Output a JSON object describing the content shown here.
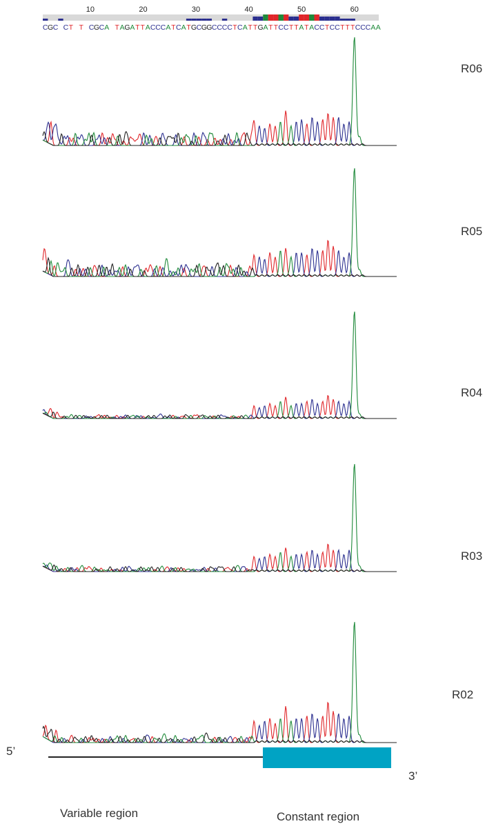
{
  "ruler": {
    "ticks": [
      "10",
      "20",
      "30",
      "40",
      "50",
      "60"
    ],
    "tick_positions": [
      10,
      20,
      30,
      40,
      50,
      60
    ]
  },
  "sequence": "CGC CT T CGCA TAGATTACCCATCATGCGGCCCCTCATTGATTCCTTATACCTCCTTTCCCAA",
  "quality": [
    1,
    0,
    0,
    1,
    0,
    0,
    0,
    0,
    0,
    0,
    0,
    0,
    0,
    0,
    0,
    0,
    0,
    0,
    0,
    0,
    0,
    0,
    0,
    0,
    0,
    0,
    0,
    0,
    1,
    1,
    1,
    1,
    1,
    0,
    0,
    1,
    0,
    0,
    0,
    0,
    0,
    2,
    2,
    3,
    3,
    3,
    3,
    3,
    2,
    2,
    3,
    3,
    3,
    3,
    2,
    2,
    2,
    2,
    1,
    1,
    1,
    0,
    0,
    0,
    0
  ],
  "base_colors": {
    "A": "#1f8a3a",
    "C": "#2b2f8f",
    "G": "#222222",
    "T": "#e0262a"
  },
  "chart_data": {
    "type": "line",
    "title": "",
    "xlabel": "",
    "ylabel": "",
    "x": {
      "range": [
        1,
        65
      ],
      "unit": "base position"
    },
    "samples": [
      "R06",
      "R05",
      "R04",
      "R03",
      "R02"
    ],
    "region_split_position": 41,
    "constant_peaks": {
      "positions": [
        41,
        42,
        43,
        44,
        45,
        46,
        47,
        48,
        49,
        50,
        51,
        52,
        53,
        54,
        55,
        56,
        57,
        58,
        59,
        60,
        61
      ],
      "bases": [
        "T",
        "C",
        "C",
        "T",
        "T",
        "A",
        "T",
        "A",
        "C",
        "C",
        "T",
        "C",
        "C",
        "T",
        "T",
        "T",
        "C",
        "C",
        "C",
        "A",
        "A"
      ],
      "R06": [
        0.22,
        0.18,
        0.16,
        0.2,
        0.18,
        0.22,
        0.32,
        0.18,
        0.22,
        0.24,
        0.2,
        0.26,
        0.22,
        0.24,
        0.3,
        0.26,
        0.26,
        0.2,
        0.22,
        1.0,
        0.08
      ],
      "R05": [
        0.2,
        0.18,
        0.16,
        0.22,
        0.18,
        0.24,
        0.26,
        0.18,
        0.22,
        0.22,
        0.2,
        0.26,
        0.24,
        0.24,
        0.34,
        0.28,
        0.24,
        0.18,
        0.22,
        1.0,
        0.06
      ],
      "R04": [
        0.12,
        0.1,
        0.12,
        0.14,
        0.12,
        0.16,
        0.2,
        0.12,
        0.14,
        0.14,
        0.16,
        0.18,
        0.14,
        0.16,
        0.22,
        0.18,
        0.16,
        0.14,
        0.16,
        1.0,
        0.04
      ],
      "R03": [
        0.14,
        0.12,
        0.14,
        0.16,
        0.14,
        0.18,
        0.22,
        0.14,
        0.16,
        0.16,
        0.18,
        0.2,
        0.16,
        0.18,
        0.26,
        0.2,
        0.2,
        0.16,
        0.2,
        1.0,
        0.05
      ],
      "R02": [
        0.18,
        0.14,
        0.18,
        0.2,
        0.16,
        0.2,
        0.3,
        0.18,
        0.2,
        0.2,
        0.22,
        0.24,
        0.2,
        0.22,
        0.34,
        0.26,
        0.24,
        0.2,
        0.22,
        1.0,
        0.06
      ]
    },
    "variable_amplitude": {
      "R06": 0.1,
      "R05": 0.1,
      "R04": 0.03,
      "R03": 0.04,
      "R02": 0.05
    }
  },
  "labels": {
    "five_prime": "5’",
    "three_prime": "3’",
    "variable_region": "Variable region",
    "constant_region": "Constant region"
  },
  "colors": {
    "variable_line": "#222222",
    "constant_box": "#00a3c4"
  }
}
